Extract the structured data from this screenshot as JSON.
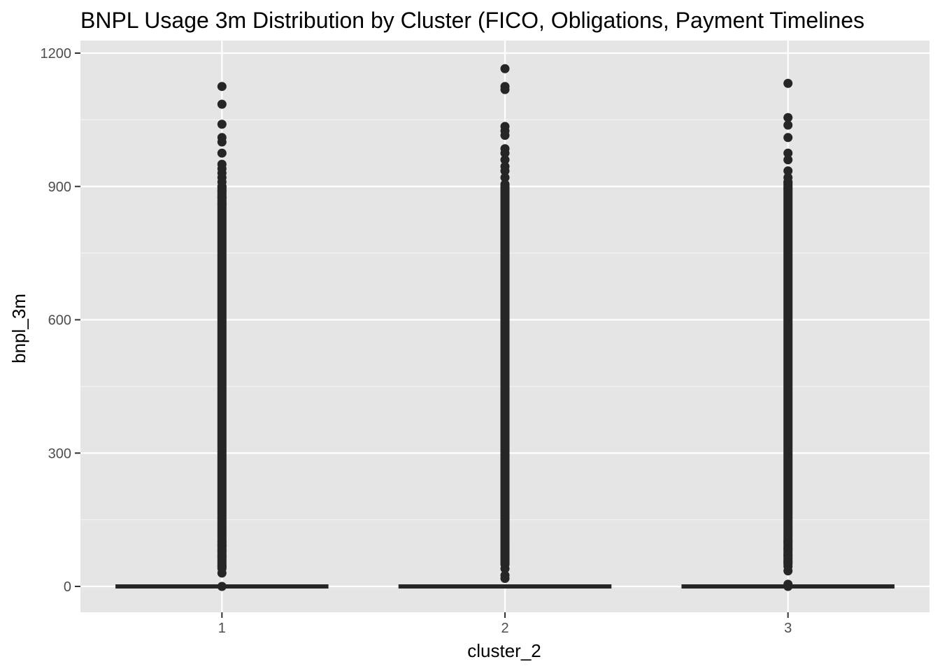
{
  "chart_data": {
    "type": "box",
    "title": "BNPL Usage 3m Distribution by Cluster (FICO, Obligations, Payment Timelines",
    "xlabel": "cluster_2",
    "ylabel": "bnpl_3m",
    "categories": [
      "1",
      "2",
      "3"
    ],
    "ylim": [
      -58,
      1200
    ],
    "y_ticks": [
      0,
      300,
      600,
      900,
      1200
    ],
    "y_tick_labels": [
      "0",
      "300",
      "600",
      "900",
      "1200"
    ],
    "grid": true,
    "boxes": [
      {
        "category": "1",
        "q1": 0,
        "median": 0,
        "q3": 0,
        "outlier_range": [
          30,
          910
        ],
        "outliers": [
          0,
          30,
          45,
          68,
          80,
          92,
          100,
          860,
          875,
          890,
          900,
          910,
          920,
          930,
          940,
          950,
          975,
          1000,
          1010,
          1040,
          1085,
          1125
        ]
      },
      {
        "category": "2",
        "q1": 0,
        "median": 0,
        "q3": 0,
        "outlier_range": [
          40,
          910
        ],
        "outliers": [
          18,
          25,
          40,
          50,
          60,
          70,
          80,
          90,
          100,
          905,
          920,
          935,
          945,
          960,
          975,
          985,
          1015,
          1025,
          1035,
          1118,
          1125,
          1165
        ]
      },
      {
        "category": "3",
        "q1": 0,
        "median": 0,
        "q3": 0,
        "outlier_range": [
          40,
          920
        ],
        "outliers": [
          0,
          5,
          35,
          45,
          55,
          70,
          85,
          100,
          895,
          910,
          920,
          935,
          960,
          975,
          1010,
          1038,
          1055,
          1132
        ]
      }
    ],
    "colors": {
      "panel": "#e5e5e5",
      "grid_major": "#ffffff",
      "grid_minor": "#f2f2f2",
      "points": "#262626",
      "box": "#262626",
      "tick": "#333333"
    }
  }
}
